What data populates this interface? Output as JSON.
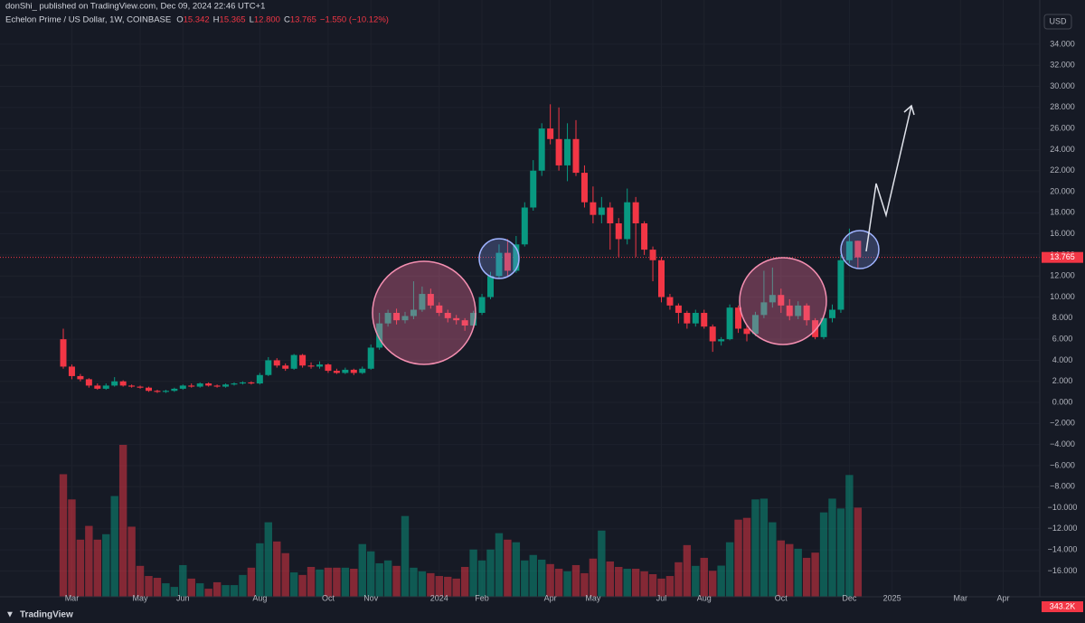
{
  "header": {
    "publisher": "donShi_ published on TradingView.com, Dec 09, 2024 22:46 UTC+1",
    "currency": "USD",
    "logo": "TradingView"
  },
  "chart_data": {
    "type": "candlestick",
    "title": "Echelon Prime / US Dollar, 1W, COINBASE",
    "legend": [
      {
        "key": "O",
        "value": "15.342"
      },
      {
        "key": "H",
        "value": "15.365"
      },
      {
        "key": "L",
        "value": "12.800"
      },
      {
        "key": "C",
        "value": "13.765"
      }
    ],
    "change": "−1.550 (−10.12%)",
    "up_color": "#089981",
    "down_color": "#f23645",
    "grid": true,
    "last_price": 13.765,
    "ylim": [
      -18.45,
      38.2
    ],
    "yticks": [
      {
        "value": -16,
        "label": "−16.000"
      },
      {
        "value": -14,
        "label": "−14.000"
      },
      {
        "value": -12,
        "label": "−12.000"
      },
      {
        "value": -10,
        "label": "−10.000"
      },
      {
        "value": -8,
        "label": "−8.000"
      },
      {
        "value": -6,
        "label": "−6.000"
      },
      {
        "value": -4,
        "label": "−4.000"
      },
      {
        "value": -2,
        "label": "−2.000"
      },
      {
        "value": 0,
        "label": "0.000"
      },
      {
        "value": 2,
        "label": "2.000"
      },
      {
        "value": 4,
        "label": "4.000"
      },
      {
        "value": 6,
        "label": "6.000"
      },
      {
        "value": 8,
        "label": "8.000"
      },
      {
        "value": 10,
        "label": "10.000"
      },
      {
        "value": 12,
        "label": "12.000"
      },
      {
        "value": 14,
        "label": "14.000"
      },
      {
        "value": 16,
        "label": "16.000"
      },
      {
        "value": 18,
        "label": "18.000"
      },
      {
        "value": 20,
        "label": "20.000"
      },
      {
        "value": 22,
        "label": "22.000"
      },
      {
        "value": 24,
        "label": "24.000"
      },
      {
        "value": 26,
        "label": "26.000"
      },
      {
        "value": 28,
        "label": "28.000"
      },
      {
        "value": 30,
        "label": "30.000"
      },
      {
        "value": 32,
        "label": "32.000"
      },
      {
        "value": 34,
        "label": "34.000"
      }
    ],
    "categories": [
      null,
      "Mar",
      null,
      null,
      null,
      null,
      null,
      null,
      null,
      "May",
      null,
      null,
      null,
      null,
      "Jun",
      null,
      null,
      null,
      null,
      null,
      null,
      null,
      null,
      "Aug",
      null,
      null,
      null,
      null,
      null,
      null,
      null,
      "Oct",
      null,
      null,
      null,
      null,
      "Nov",
      null,
      null,
      null,
      null,
      null,
      null,
      null,
      "2024",
      null,
      null,
      null,
      null,
      "Feb",
      null,
      null,
      null,
      null,
      null,
      null,
      null,
      "Apr",
      null,
      null,
      null,
      null,
      "May",
      null,
      null,
      null,
      null,
      null,
      null,
      null,
      "Jul",
      null,
      null,
      null,
      null,
      "Aug",
      null,
      null,
      null,
      null,
      null,
      null,
      null,
      null,
      "Oct",
      null,
      null,
      null,
      null,
      null,
      null,
      null,
      "Dec",
      null,
      null,
      null,
      null,
      "2025",
      null,
      null,
      null,
      null,
      null,
      null,
      null,
      "Mar",
      null,
      null,
      null,
      null,
      "Apr"
    ],
    "open": [
      6,
      3.4,
      2.5,
      2.2,
      1.6,
      1.3,
      1.6,
      2,
      1.6,
      1.5,
      1.4,
      1.1,
      1,
      1.1,
      1.3,
      1.6,
      1.5,
      1.8,
      1.6,
      1.5,
      1.7,
      1.8,
      1.9,
      1.8,
      2.6,
      4,
      3.5,
      3.2,
      4.5,
      3.5,
      3.4,
      3.6,
      3,
      2.8,
      3.1,
      2.8,
      3.2,
      5.2,
      7.5,
      8.5,
      7.8,
      8.2,
      8.8,
      10.3,
      9.2,
      8.5,
      8,
      7.8,
      7.3,
      8.5,
      10,
      12,
      14.2,
      12.5,
      15,
      18.5,
      22,
      26,
      25,
      22.5,
      25,
      21.8,
      19,
      17.8,
      18.5,
      17,
      15.5,
      19,
      17,
      14.5,
      13.5,
      10,
      9.2,
      8.5,
      7.5,
      8.5,
      7.2,
      5.8,
      6,
      9,
      7,
      6.5,
      8.3,
      9.5,
      10.2,
      9.2,
      8.2,
      9.2,
      7.8,
      6.2,
      8,
      8.8,
      13.5,
      15.342,
      null,
      null,
      null,
      null,
      null,
      null,
      null,
      null,
      null,
      null,
      null,
      null,
      null,
      null,
      null,
      null,
      null
    ],
    "high": [
      7,
      3.6,
      2.7,
      2.3,
      1.8,
      1.8,
      2.4,
      2.1,
      1.7,
      1.6,
      1.5,
      1.2,
      1.2,
      1.4,
      1.7,
      1.8,
      1.9,
      1.9,
      1.7,
      1.8,
      1.9,
      2,
      2,
      2.8,
      4.3,
      4.2,
      3.7,
      4.6,
      4.6,
      3.8,
      3.9,
      3.7,
      3.2,
      3.3,
      3.2,
      3.4,
      5.5,
      8.5,
      8.8,
      8.9,
      8.6,
      11.5,
      11,
      10.8,
      9.5,
      8.8,
      8.3,
      8,
      8.7,
      10.3,
      12.4,
      15,
      15.5,
      15.8,
      19,
      23,
      26.5,
      28.3,
      28,
      26.5,
      26.8,
      22.5,
      20.5,
      19.5,
      19,
      17.5,
      20.3,
      19.5,
      17.2,
      14.8,
      13.8,
      10.3,
      9.4,
      8.7,
      8.8,
      8.8,
      7.4,
      6.2,
      9.3,
      9.2,
      7.3,
      8.6,
      12.5,
      12.8,
      10.8,
      9.8,
      9.6,
      9.4,
      8,
      8.3,
      9.3,
      14,
      16.5,
      15.365,
      null,
      null,
      null,
      null,
      null,
      null,
      null,
      null,
      null,
      null,
      null,
      null,
      null,
      null,
      null,
      null,
      null
    ],
    "low": [
      3.2,
      2.2,
      2,
      1.4,
      1.2,
      1.2,
      1.5,
      1.5,
      1.4,
      1.3,
      1,
      0.9,
      0.9,
      1,
      1.2,
      1.4,
      1.4,
      1.5,
      1.4,
      1.4,
      1.6,
      1.7,
      1.7,
      1.7,
      2.5,
      3.3,
      3,
      3.1,
      3.3,
      3.2,
      3.2,
      2.8,
      2.7,
      2.7,
      2.6,
      2.7,
      3.1,
      5,
      7.2,
      7.4,
      7.5,
      7.9,
      8.6,
      8.9,
      8.2,
      7.6,
      7.4,
      6.8,
      7.1,
      8.3,
      9.8,
      11.8,
      12,
      12.3,
      14.8,
      18.2,
      21.5,
      24.5,
      22,
      21,
      21.5,
      18.5,
      17,
      17,
      14.5,
      13.8,
      15,
      13.8,
      14,
      11.5,
      9.5,
      8.8,
      7.5,
      7,
      7.2,
      7,
      4.8,
      5.4,
      5.9,
      6.6,
      5.8,
      6.3,
      8,
      9,
      8.5,
      7.8,
      7.9,
      7.3,
      6,
      6,
      7.6,
      8.5,
      13.2,
      12.8,
      null,
      null,
      null,
      null,
      null,
      null,
      null,
      null,
      null,
      null,
      null,
      null,
      null,
      null,
      null,
      null,
      null
    ],
    "close": [
      3.4,
      2.5,
      2.2,
      1.6,
      1.3,
      1.6,
      2,
      1.6,
      1.5,
      1.4,
      1.1,
      1,
      1.1,
      1.3,
      1.6,
      1.5,
      1.8,
      1.6,
      1.5,
      1.7,
      1.8,
      1.9,
      1.8,
      2.6,
      4,
      3.5,
      3.2,
      4.5,
      3.5,
      3.4,
      3.6,
      3,
      2.8,
      3.1,
      2.8,
      3.2,
      5.2,
      7.5,
      8.5,
      7.8,
      8.2,
      8.8,
      10.3,
      9.2,
      8.5,
      8,
      7.8,
      7.3,
      8.5,
      10,
      12,
      14.2,
      12.5,
      15,
      18.5,
      22,
      26,
      25,
      22.5,
      25,
      21.8,
      19,
      17.8,
      18.5,
      17,
      15.5,
      19,
      17,
      14.5,
      13.5,
      10,
      9.2,
      8.5,
      7.5,
      8.5,
      7.2,
      5.8,
      6,
      9,
      7,
      6.5,
      8.3,
      9.5,
      10.2,
      9.2,
      8.2,
      9.2,
      7.8,
      6.2,
      8,
      8.8,
      13.5,
      15.3,
      13.765,
      null,
      null,
      null,
      null,
      null,
      null,
      null,
      null,
      null,
      null,
      null,
      null,
      null,
      null,
      null,
      null,
      null
    ],
    "volume": {
      "values": [
        472000,
        375000,
        220000,
        273000,
        220000,
        241000,
        388000,
        585000,
        270000,
        119000,
        80000,
        73000,
        52000,
        38000,
        122000,
        70000,
        52000,
        31000,
        56000,
        45000,
        45000,
        84000,
        112000,
        206000,
        287000,
        213000,
        168000,
        94000,
        84000,
        115000,
        105000,
        112000,
        112000,
        112000,
        108000,
        203000,
        175000,
        129000,
        140000,
        119000,
        311000,
        112000,
        98000,
        91000,
        80000,
        77000,
        70000,
        115000,
        182000,
        140000,
        182000,
        245000,
        220000,
        210000,
        140000,
        161000,
        143000,
        126000,
        108000,
        98000,
        122000,
        91000,
        147000,
        255000,
        136000,
        115000,
        108000,
        108000,
        98000,
        87000,
        70000,
        80000,
        133000,
        199000,
        119000,
        150000,
        100000,
        120000,
        210000,
        297000,
        304000,
        375000,
        378000,
        287000,
        217000,
        203000,
        185000,
        150000,
        170000,
        325000,
        378000,
        340000,
        469000,
        343200,
        null,
        null,
        null,
        null,
        null,
        null,
        null,
        null,
        null,
        null,
        null,
        null,
        null,
        null,
        null,
        null,
        null
      ],
      "value_labels": [
        null,
        null,
        null,
        null,
        null,
        null,
        null,
        null,
        null,
        null,
        null,
        null,
        null,
        null,
        null,
        null,
        null,
        null,
        null,
        null,
        null,
        null,
        null,
        null,
        null,
        null,
        null,
        null,
        null,
        null,
        null,
        null,
        null,
        null,
        null,
        null,
        null,
        null,
        null,
        null,
        null,
        null,
        null,
        null,
        null,
        null,
        null,
        null,
        null,
        null,
        null,
        null,
        null,
        null,
        null,
        null,
        null,
        null,
        null,
        null,
        null,
        null,
        null,
        null,
        null,
        null,
        null,
        null,
        null,
        null,
        null,
        null,
        null,
        null,
        null,
        null,
        null,
        null,
        null,
        null,
        null,
        null,
        null,
        null,
        null,
        null,
        null,
        null,
        null,
        null,
        null,
        null,
        null,
        "343.2K",
        null,
        null,
        null,
        null,
        null,
        null,
        null,
        null,
        null,
        null,
        null,
        null,
        null,
        null,
        null,
        null,
        null
      ]
    }
  }
}
